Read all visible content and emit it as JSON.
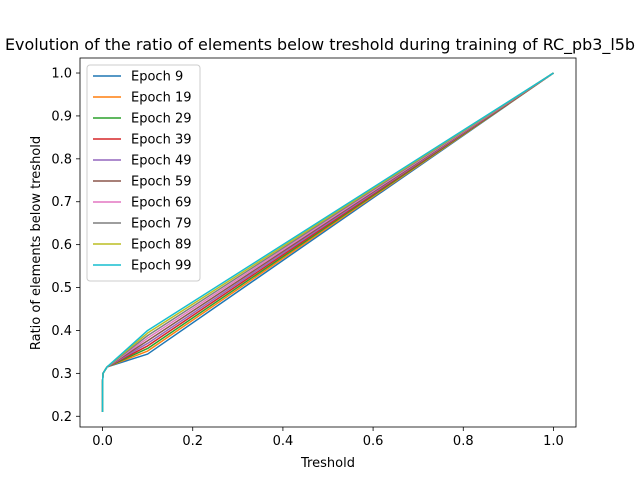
{
  "chart_data": {
    "type": "line",
    "title": "Evolution of the ratio of elements below treshold during training of RC_pb3_l5b",
    "xlabel": "Treshold",
    "ylabel": "Ratio of elements below treshold",
    "xlim": [
      -0.05,
      1.05
    ],
    "ylim": [
      0.175,
      1.035
    ],
    "xticks": [
      0.0,
      0.2,
      0.4,
      0.6,
      0.8,
      1.0
    ],
    "xtick_labels": [
      "0.0",
      "0.2",
      "0.4",
      "0.6",
      "0.8",
      "1.0"
    ],
    "yticks": [
      0.2,
      0.3,
      0.4,
      0.5,
      0.6,
      0.7,
      0.8,
      0.9,
      1.0
    ],
    "ytick_labels": [
      "0.2",
      "0.3",
      "0.4",
      "0.5",
      "0.6",
      "0.7",
      "0.8",
      "0.9",
      "1.0"
    ],
    "grid": false,
    "legend_position": "upper-left",
    "x": [
      0.0,
      0.0001,
      0.001,
      0.01,
      0.1,
      1.0
    ],
    "series": [
      {
        "name": "Epoch 9",
        "color": "#1f77b4",
        "values": [
          0.21,
          0.28,
          0.3,
          0.315,
          0.345,
          1.0
        ]
      },
      {
        "name": "Epoch 19",
        "color": "#ff7f0e",
        "values": [
          0.21,
          0.28,
          0.3,
          0.315,
          0.352,
          1.0
        ]
      },
      {
        "name": "Epoch 29",
        "color": "#2ca02c",
        "values": [
          0.21,
          0.28,
          0.3,
          0.315,
          0.358,
          1.0
        ]
      },
      {
        "name": "Epoch 39",
        "color": "#d62728",
        "values": [
          0.21,
          0.28,
          0.3,
          0.315,
          0.364,
          1.0
        ]
      },
      {
        "name": "Epoch 49",
        "color": "#9467bd",
        "values": [
          0.21,
          0.28,
          0.3,
          0.315,
          0.37,
          1.0
        ]
      },
      {
        "name": "Epoch 59",
        "color": "#8c564b",
        "values": [
          0.21,
          0.28,
          0.3,
          0.315,
          0.376,
          1.0
        ]
      },
      {
        "name": "Epoch 69",
        "color": "#e377c2",
        "values": [
          0.21,
          0.28,
          0.3,
          0.315,
          0.382,
          1.0
        ]
      },
      {
        "name": "Epoch 79",
        "color": "#7f7f7f",
        "values": [
          0.21,
          0.28,
          0.3,
          0.315,
          0.388,
          1.0
        ]
      },
      {
        "name": "Epoch 89",
        "color": "#bcbd22",
        "values": [
          0.21,
          0.28,
          0.3,
          0.315,
          0.394,
          1.0
        ]
      },
      {
        "name": "Epoch 99",
        "color": "#17becf",
        "values": [
          0.21,
          0.28,
          0.3,
          0.315,
          0.4,
          1.0
        ]
      }
    ]
  }
}
